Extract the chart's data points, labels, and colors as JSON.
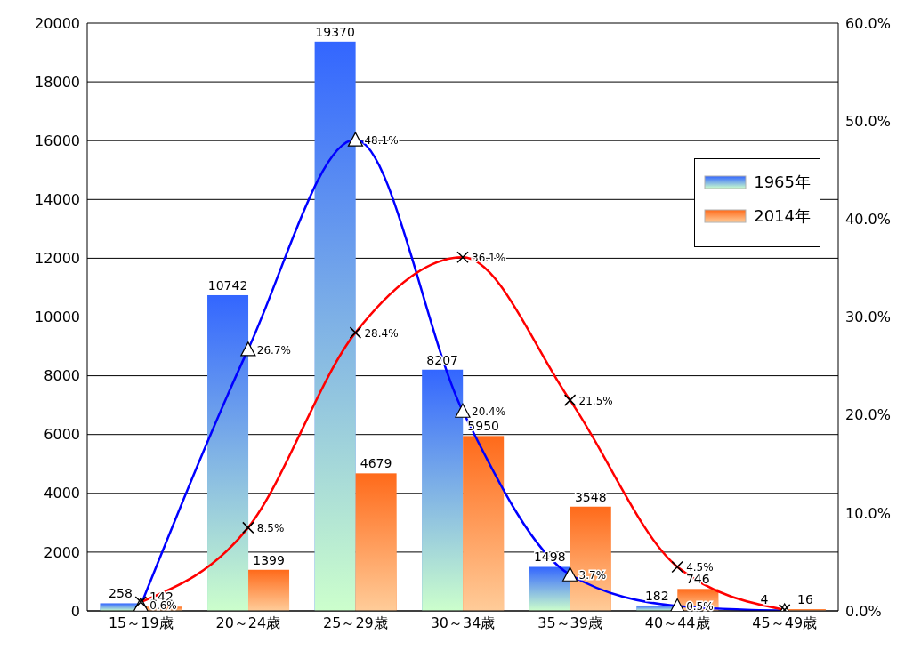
{
  "chart_data": {
    "type": "bar",
    "categories": [
      "15～19歳",
      "20～24歳",
      "25～29歳",
      "30～34歳",
      "35～39歳",
      "40～44歳",
      "45～49歳"
    ],
    "series": [
      {
        "name": "1965年",
        "color": "#3366ff",
        "values": [
          258,
          10742,
          19370,
          8207,
          1498,
          182,
          4
        ]
      },
      {
        "name": "2014年",
        "color": "#ff6a1a",
        "values": [
          142,
          1399,
          4679,
          5950,
          3548,
          746,
          16
        ]
      },
      {
        "type": "line",
        "axis": "y2",
        "color": "#0000ff",
        "marker": "triangle",
        "values": [
          0.6,
          26.7,
          48.1,
          20.4,
          3.7,
          0.5,
          0.0
        ],
        "value_labels": [
          "0.6%",
          "26.7%",
          "48.1%",
          "20.4%",
          "3.7%",
          "0.5%",
          null
        ]
      },
      {
        "type": "line",
        "axis": "y2",
        "color": "#ff0000",
        "marker": "cross",
        "values": [
          0.9,
          8.5,
          28.4,
          36.1,
          21.5,
          4.5,
          0.1
        ],
        "value_labels": [
          null,
          "8.5%",
          "28.4%",
          "36.1%",
          "21.5%",
          "4.5%",
          null
        ]
      }
    ],
    "ylim": [
      0,
      20000
    ],
    "yticks": [
      0,
      2000,
      4000,
      6000,
      8000,
      10000,
      12000,
      14000,
      16000,
      18000,
      20000
    ],
    "y2lim": [
      0,
      60
    ],
    "y2ticks": [
      {
        "value": 0,
        "label": "0.0%"
      },
      {
        "value": 10,
        "label": "10.0%"
      },
      {
        "value": 20,
        "label": "20.0%"
      },
      {
        "value": 30,
        "label": "30.0%"
      },
      {
        "value": 40,
        "label": "40.0%"
      },
      {
        "value": 50,
        "label": "50.0%"
      },
      {
        "value": 60,
        "label": "60.0%"
      }
    ],
    "grid": "y",
    "legend": "right",
    "data_labels": true
  }
}
